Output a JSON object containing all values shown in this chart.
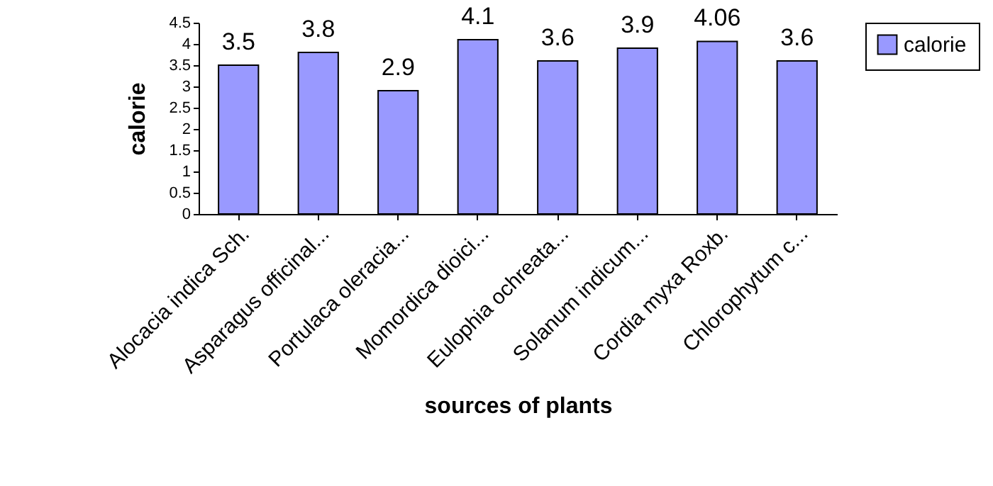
{
  "chart_data": {
    "type": "bar",
    "xlabel": "sources of plants",
    "ylabel": "calorie",
    "categories": [
      "Alocacia indica Sch.",
      "Asparagus officinal...",
      "Portulaca oleracia...",
      "Momordica dioici...",
      "Eulophia ochreata...",
      "Solanum indicum...",
      "Cordia myxa Roxb.",
      "Chlorophytum c..."
    ],
    "series": [
      {
        "name": "calorie",
        "color": "#9999ff",
        "values": [
          3.5,
          3.8,
          2.9,
          4.1,
          3.6,
          3.9,
          4.06,
          3.6
        ]
      }
    ],
    "ylim": [
      0,
      4.5
    ],
    "yticks": [
      0,
      0.5,
      1,
      1.5,
      2,
      2.5,
      3,
      3.5,
      4,
      4.5
    ],
    "data_labels": true,
    "legend": "right",
    "grid": false
  }
}
